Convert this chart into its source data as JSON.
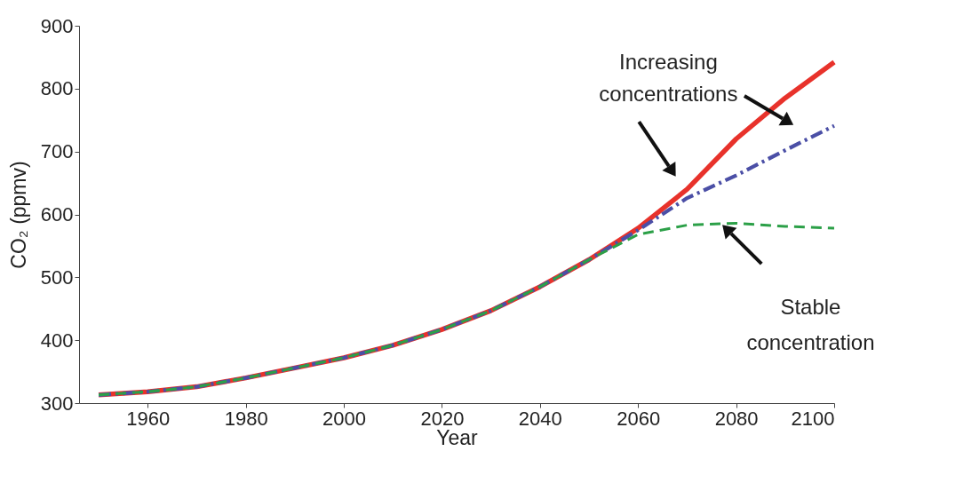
{
  "chart_data": {
    "type": "line",
    "xlabel": "Year",
    "ylabel": "CO₂ (ppmv)",
    "xlim": [
      1946,
      2100
    ],
    "ylim": [
      300,
      900
    ],
    "xticks": [
      1960,
      1980,
      2000,
      2020,
      2040,
      2060,
      2080,
      2100
    ],
    "yticks": [
      300,
      400,
      500,
      600,
      700,
      800,
      900
    ],
    "grid": false,
    "annotations": [
      "Increasing concentrations",
      "Stable concentration"
    ],
    "series": [
      {
        "color": "#e8322b",
        "line_style": "solid",
        "x": [
          1950,
          1960,
          1970,
          1980,
          1990,
          2000,
          2010,
          2020,
          2030,
          2040,
          2050,
          2060,
          2070,
          2080,
          2090,
          2100
        ],
        "values": [
          313,
          318,
          326,
          340,
          356,
          372,
          392,
          417,
          447,
          485,
          528,
          578,
          640,
          720,
          785,
          842
        ]
      },
      {
        "color": "#4b4fa6",
        "line_style": "dashdot",
        "x": [
          1950,
          1960,
          1970,
          1980,
          1990,
          2000,
          2010,
          2020,
          2030,
          2040,
          2050,
          2060,
          2070,
          2080,
          2090,
          2100
        ],
        "values": [
          313,
          318,
          326,
          340,
          356,
          372,
          392,
          417,
          447,
          485,
          528,
          575,
          626,
          662,
          702,
          741
        ]
      },
      {
        "color": "#2ca048",
        "line_style": "dashed",
        "x": [
          1950,
          1960,
          1970,
          1980,
          1990,
          2000,
          2010,
          2020,
          2030,
          2040,
          2050,
          2060,
          2070,
          2080,
          2090,
          2100
        ],
        "values": [
          313,
          318,
          326,
          340,
          356,
          372,
          392,
          417,
          447,
          485,
          528,
          568,
          583,
          586,
          581,
          578
        ]
      }
    ]
  }
}
